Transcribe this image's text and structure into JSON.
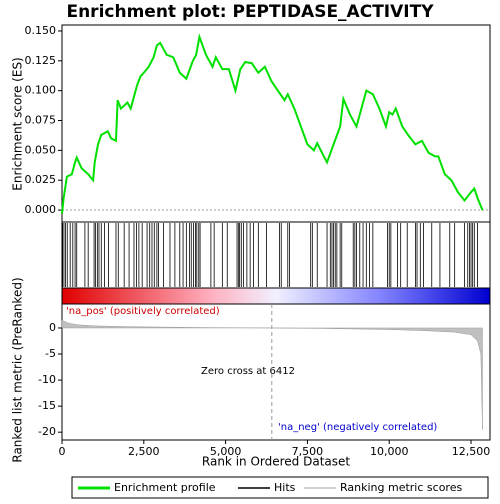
{
  "chart_data": [
    {
      "type": "line",
      "title": "Enrichment plot: PEPTIDASE_ACTIVITY",
      "ylabel": "Enrichment score (ES)",
      "xlim": [
        0,
        13080
      ],
      "ylim": [
        -0.01,
        0.155
      ],
      "yticks": [
        {
          "value": 0,
          "label": "0.000"
        },
        {
          "value": 0.025,
          "label": "0.025"
        },
        {
          "value": 0.05,
          "label": "0.050"
        },
        {
          "value": 0.075,
          "label": "0.075"
        },
        {
          "value": 0.1,
          "label": "0.100"
        },
        {
          "value": 0.125,
          "label": "0.125"
        },
        {
          "value": 0.15,
          "label": "0.150"
        }
      ],
      "x": [
        0,
        50,
        150,
        300,
        400,
        450,
        600,
        800,
        950,
        1000,
        1100,
        1200,
        1400,
        1500,
        1650,
        1700,
        1800,
        2000,
        2100,
        2300,
        2400,
        2500,
        2650,
        2800,
        2900,
        3000,
        3200,
        3400,
        3600,
        3800,
        4000,
        4100,
        4200,
        4400,
        4600,
        4700,
        4900,
        5100,
        5300,
        5450,
        5600,
        5800,
        6000,
        6200,
        6400,
        6600,
        6800,
        6900,
        7100,
        7500,
        7700,
        7800,
        8000,
        8100,
        8300,
        8500,
        8600,
        8800,
        9000,
        9200,
        9300,
        9500,
        9700,
        9900,
        10000,
        10100,
        10200,
        10400,
        10600,
        10800,
        11000,
        11200,
        11400,
        11500,
        11700,
        11900,
        12100,
        12300,
        12500,
        12600,
        12700,
        12850
      ],
      "series": [
        {
          "name": "Enrichment profile",
          "color": "#00e000",
          "values": [
            -0.003,
            0.01,
            0.028,
            0.03,
            0.04,
            0.044,
            0.035,
            0.03,
            0.025,
            0.04,
            0.055,
            0.063,
            0.066,
            0.06,
            0.058,
            0.092,
            0.085,
            0.09,
            0.085,
            0.105,
            0.112,
            0.115,
            0.12,
            0.128,
            0.138,
            0.14,
            0.13,
            0.128,
            0.115,
            0.11,
            0.125,
            0.13,
            0.145,
            0.13,
            0.12,
            0.128,
            0.118,
            0.118,
            0.1,
            0.118,
            0.124,
            0.123,
            0.115,
            0.12,
            0.108,
            0.1,
            0.092,
            0.097,
            0.085,
            0.055,
            0.05,
            0.056,
            0.045,
            0.04,
            0.055,
            0.07,
            0.093,
            0.08,
            0.07,
            0.09,
            0.1,
            0.097,
            0.085,
            0.07,
            0.082,
            0.08,
            0.085,
            0.07,
            0.062,
            0.055,
            0.058,
            0.048,
            0.045,
            0.045,
            0.03,
            0.025,
            0.015,
            0.008,
            0.015,
            0.018,
            0.01,
            0.0
          ]
        }
      ],
      "hits": {
        "name": "Hits",
        "color": "#000000",
        "x": [
          20,
          60,
          110,
          160,
          250,
          330,
          400,
          450,
          700,
          800,
          980,
          1020,
          1080,
          1130,
          1200,
          1300,
          1420,
          1650,
          1720,
          1900,
          2050,
          2200,
          2280,
          2350,
          2450,
          2600,
          2680,
          2750,
          2820,
          2900,
          2950,
          3100,
          3300,
          3450,
          3600,
          3700,
          3800,
          3900,
          3950,
          4020,
          4080,
          4120,
          4180,
          4220,
          4550,
          4650,
          4900,
          5050,
          5350,
          5400,
          5430,
          5480,
          5550,
          5650,
          5750,
          5850,
          6000,
          6250,
          6650,
          6700,
          6900,
          6950,
          7600,
          7650,
          7800,
          8100,
          8200,
          8250,
          8300,
          8350,
          8400,
          8500,
          8550,
          8900,
          8950,
          9000,
          9100,
          9200,
          9300,
          9400,
          9500,
          9950,
          10000,
          10050,
          10250,
          10350,
          10550,
          10800,
          10850,
          10950,
          11050,
          11300,
          11550,
          11850,
          12000,
          12300,
          12400,
          12450,
          12500,
          12550,
          12600,
          12700
        ]
      }
    },
    {
      "type": "area",
      "ylabel": "Ranked list metric (PreRanked)",
      "xlabel": "Rank in Ordered Dataset",
      "xlim": [
        0,
        13080
      ],
      "ylim": [
        -21.5,
        4.6
      ],
      "yticks": [
        0,
        -5,
        -10,
        -15,
        -20
      ],
      "xticks": [
        0,
        {
          "value": 2500,
          "label": "2,500"
        },
        {
          "value": 5000,
          "label": "5,000"
        },
        {
          "value": 7500,
          "label": "7,500"
        },
        {
          "value": 10000,
          "label": "10,000"
        },
        {
          "value": 12500,
          "label": "12,500"
        }
      ],
      "x": [
        0,
        200,
        500,
        1000,
        2000,
        4000,
        6412,
        8000,
        10000,
        11000,
        12000,
        12500,
        12700,
        12800,
        12850
      ],
      "series": [
        {
          "name": "Ranking metric scores",
          "color": "#c0c0c0",
          "values": [
            1.5,
            0.9,
            0.6,
            0.4,
            0.25,
            0.1,
            0,
            -0.1,
            -0.3,
            -0.5,
            -0.8,
            -1.3,
            -2.5,
            -5,
            -19.5
          ]
        }
      ],
      "zero_cross": 6412,
      "annotations": [
        "Zero cross at 6412",
        "'na_pos' (positively correlated)",
        "'na_neg' (negatively correlated)"
      ]
    }
  ]
}
